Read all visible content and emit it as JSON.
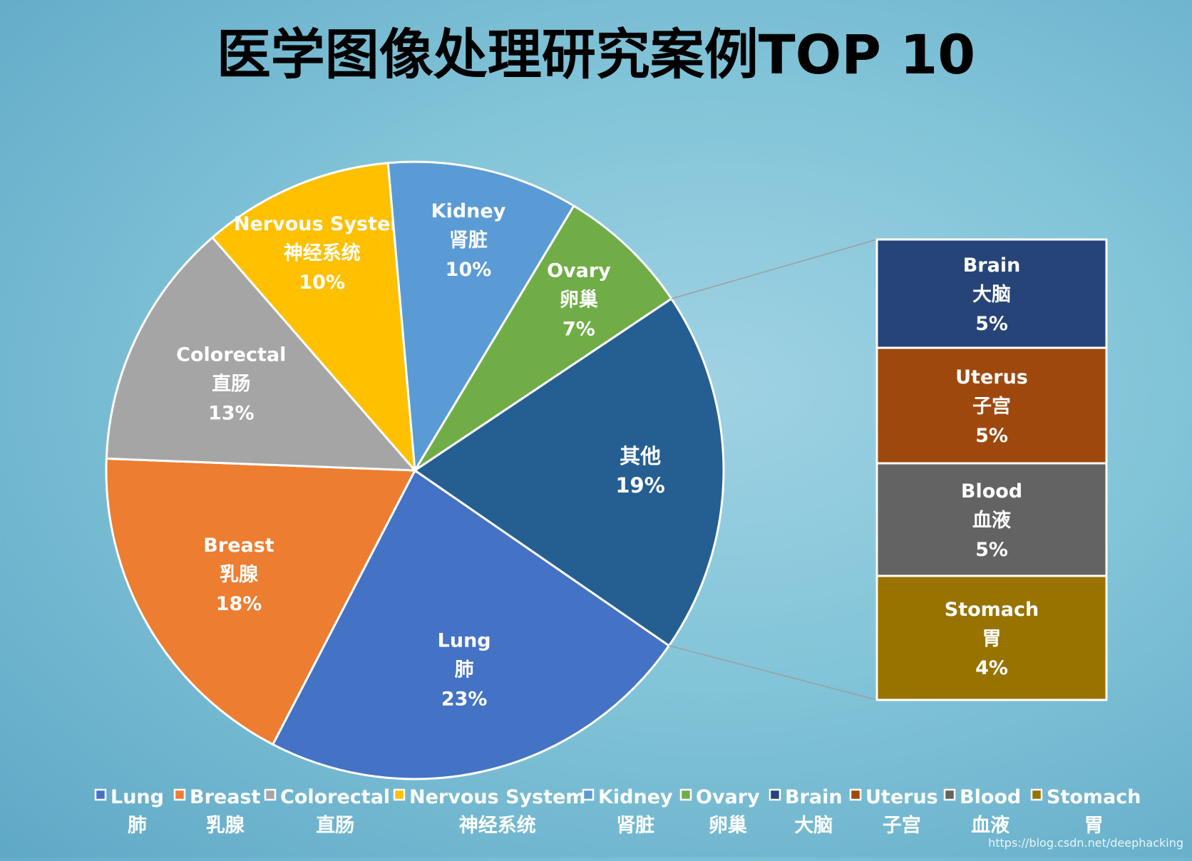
{
  "chart_data": {
    "type": "pie",
    "subtype": "bar-of-pie",
    "title": "医学图像处理研究案例TOP 10",
    "slices": [
      {
        "name": "Lung",
        "cn": "肺",
        "value": 23,
        "pct": "23%",
        "color": "#4472C4"
      },
      {
        "name": "Breast",
        "cn": "乳腺",
        "value": 18,
        "pct": "18%",
        "color": "#ED7D31"
      },
      {
        "name": "Colorectal",
        "cn": "直肠",
        "value": 13,
        "pct": "13%",
        "color": "#A5A5A5"
      },
      {
        "name": "Nervous System",
        "cn": "神经系统",
        "value": 10,
        "pct": "10%",
        "color": "#FFC000"
      },
      {
        "name": "Kidney",
        "cn": "肾脏",
        "value": 10,
        "pct": "10%",
        "color": "#5B9BD5"
      },
      {
        "name": "Ovary",
        "cn": "卵巢",
        "value": 7,
        "pct": "7%",
        "color": "#70AD47"
      }
    ],
    "other": {
      "name": "其他",
      "value": 19,
      "pct": "19%",
      "color": "#255E91"
    },
    "breakdown": [
      {
        "name": "Brain",
        "cn": "大脑",
        "value": 5,
        "pct": "5%",
        "color": "#264478"
      },
      {
        "name": "Uterus",
        "cn": "子宫",
        "value": 5,
        "pct": "5%",
        "color": "#9E480E"
      },
      {
        "name": "Blood",
        "cn": "血液",
        "value": 5,
        "pct": "5%",
        "color": "#636363"
      },
      {
        "name": "Stomach",
        "cn": "胃",
        "value": 4,
        "pct": "4%",
        "color": "#997300"
      }
    ],
    "legend_position": "bottom"
  },
  "watermark": "https://blog.csdn.net/deephacking"
}
